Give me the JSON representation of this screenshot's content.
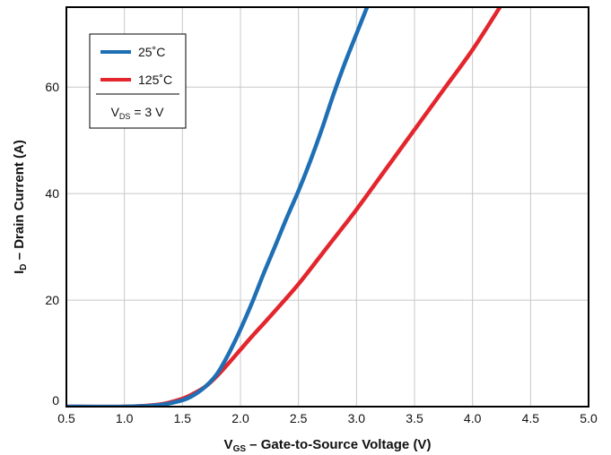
{
  "chart_data": {
    "type": "line",
    "xlabel": {
      "main": "V",
      "sub": "GS",
      "rest": " – Gate-to-Source Voltage (V)"
    },
    "ylabel": {
      "main": "I",
      "sub": "D",
      "rest": " – Drain Current (A)"
    },
    "xlim": [
      0.5,
      5.0
    ],
    "ylim": [
      0,
      75
    ],
    "xticks": [
      "0.5",
      "1.0",
      "1.5",
      "2.0",
      "2.5",
      "3.0",
      "3.5",
      "4.0",
      "4.5",
      "5.0"
    ],
    "yticks": [
      "0",
      "20",
      "40",
      "60"
    ],
    "grid": true,
    "legend": {
      "position": "top-left",
      "condition": {
        "main": "V",
        "sub": "DS",
        "rest": " = 3 V"
      }
    },
    "series": [
      {
        "name": "25˚C",
        "color": "#1f6fb5",
        "x": [
          0.5,
          1.0,
          1.3,
          1.5,
          1.6,
          1.7,
          1.8,
          1.9,
          2.0,
          2.1,
          2.2,
          2.3,
          2.4,
          2.5,
          2.6,
          2.7,
          2.8,
          2.9,
          3.0,
          3.1
        ],
        "y": [
          0,
          0,
          0.3,
          1.2,
          2.2,
          3.8,
          6.2,
          10.0,
          14.5,
          19.5,
          25.0,
          30.2,
          35.5,
          40.5,
          46.0,
          52.0,
          58.5,
          64.5,
          70.0,
          75.5
        ]
      },
      {
        "name": "125˚C",
        "color": "#e3262d",
        "x": [
          0.5,
          1.0,
          1.3,
          1.5,
          1.6,
          1.7,
          1.8,
          1.9,
          2.0,
          2.1,
          2.25,
          2.5,
          2.75,
          3.0,
          3.25,
          3.5,
          3.75,
          4.0,
          4.25
        ],
        "y": [
          0,
          0,
          0.4,
          1.5,
          2.5,
          3.8,
          5.8,
          8.2,
          10.7,
          13.2,
          16.8,
          23.0,
          30.0,
          37.0,
          44.5,
          52.0,
          59.5,
          67.0,
          75.5
        ]
      }
    ]
  }
}
